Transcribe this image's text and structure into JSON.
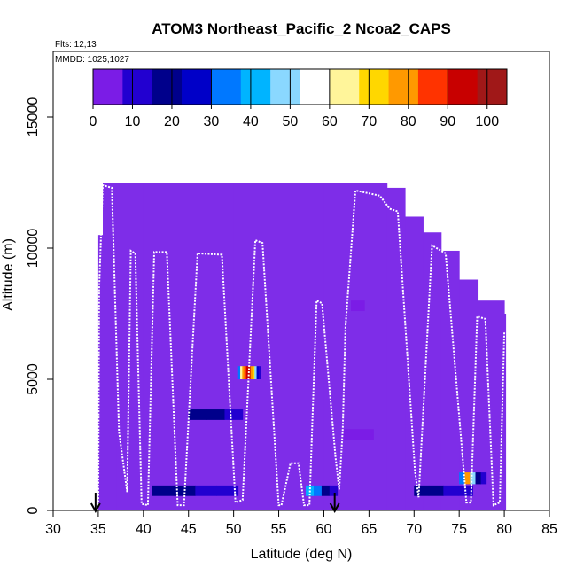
{
  "chart_data": {
    "type": "heatmap",
    "title": "ATOM3 Northeast_Pacific_2 Ncoa2_CAPS",
    "annotations": [
      "Flts: 12,13",
      "MMDD: 1025,1027"
    ],
    "xlabel": "Latitude (deg N)",
    "ylabel": "Altitude (m)",
    "xlim": [
      30,
      85
    ],
    "ylim": [
      0,
      17500
    ],
    "x_ticks": [
      "30",
      "35",
      "40",
      "45",
      "50",
      "55",
      "60",
      "65",
      "70",
      "75",
      "80",
      "85"
    ],
    "y_ticks": [
      "0",
      "5000",
      "10000",
      "15000"
    ],
    "colorbar": {
      "range": [
        0,
        105
      ],
      "ticks": [
        "0",
        "10",
        "20",
        "30",
        "40",
        "50",
        "60",
        "70",
        "80",
        "90",
        "100"
      ],
      "colors": [
        "#7b1ce6",
        "#2200d0",
        "#00008b",
        "#0000c8",
        "#0078ff",
        "#00b4ff",
        "#8ad8ff",
        "#ffffff",
        "#fff59a",
        "#ffd700",
        "#ff9900",
        "#ff3300",
        "#c80000",
        "#a01818"
      ]
    },
    "background_value_color": "#7e2de8",
    "sampled_region_columns": [
      {
        "lat": 35,
        "alt_max": 10500
      },
      {
        "lat": 35.5,
        "alt_max": 12500
      },
      {
        "lat": 37,
        "alt_max": 12500
      },
      {
        "lat": 40,
        "alt_max": 12500
      },
      {
        "lat": 50,
        "alt_max": 12500
      },
      {
        "lat": 60,
        "alt_max": 12500
      },
      {
        "lat": 67,
        "alt_max": 12300
      },
      {
        "lat": 69,
        "alt_max": 11200
      },
      {
        "lat": 71,
        "alt_max": 10600
      },
      {
        "lat": 73,
        "alt_max": 9900
      },
      {
        "lat": 75,
        "alt_max": 8800
      },
      {
        "lat": 77,
        "alt_max": 8000
      },
      {
        "lat": 80,
        "alt_max": 7500
      }
    ],
    "patches": [
      {
        "lat": [
          50.5,
          53.0
        ],
        "alt": [
          5000,
          5500
        ],
        "values": [
          30,
          60,
          75,
          85,
          95,
          90,
          80,
          70,
          50,
          25,
          10
        ]
      },
      {
        "lat": [
          45.0,
          51.0
        ],
        "alt": [
          3450,
          3850
        ],
        "values": [
          15,
          18,
          12
        ]
      },
      {
        "lat": [
          41.0,
          50.5
        ],
        "alt": [
          550,
          950
        ],
        "values": [
          18,
          15,
          12,
          10
        ]
      },
      {
        "lat": [
          58.0,
          61.5
        ],
        "alt": [
          550,
          950
        ],
        "values": [
          40,
          35,
          15,
          10
        ]
      },
      {
        "lat": [
          70.0,
          76.5
        ],
        "alt": [
          550,
          950
        ],
        "values": [
          18,
          15,
          12,
          10
        ]
      },
      {
        "lat": [
          75.0,
          78.0
        ],
        "alt": [
          1000,
          1450
        ],
        "values": [
          35,
          80,
          45,
          15,
          8
        ]
      },
      {
        "lat": [
          62.0,
          65.5
        ],
        "alt": [
          2700,
          3100
        ],
        "values": [
          3
        ]
      },
      {
        "lat": [
          63.0,
          64.5
        ],
        "alt": [
          7600,
          8000
        ],
        "values": [
          3
        ]
      }
    ],
    "flight_track": [
      {
        "x": 35.0,
        "y": 200
      },
      {
        "x": 35.1,
        "y": 8500
      },
      {
        "x": 35.5,
        "y": 12400
      },
      {
        "x": 36.5,
        "y": 12300
      },
      {
        "x": 37.3,
        "y": 3000
      },
      {
        "x": 38.2,
        "y": 700
      },
      {
        "x": 38.6,
        "y": 9900
      },
      {
        "x": 39.1,
        "y": 9800
      },
      {
        "x": 39.8,
        "y": 250
      },
      {
        "x": 40.5,
        "y": 200
      },
      {
        "x": 41.2,
        "y": 9850
      },
      {
        "x": 42.6,
        "y": 9850
      },
      {
        "x": 43.8,
        "y": 200
      },
      {
        "x": 44.5,
        "y": 200
      },
      {
        "x": 46.0,
        "y": 9800
      },
      {
        "x": 48.7,
        "y": 9750
      },
      {
        "x": 50.2,
        "y": 300
      },
      {
        "x": 51.0,
        "y": 400
      },
      {
        "x": 52.4,
        "y": 10300
      },
      {
        "x": 53.2,
        "y": 10200
      },
      {
        "x": 55.0,
        "y": 200
      },
      {
        "x": 55.3,
        "y": 200
      },
      {
        "x": 56.3,
        "y": 1800
      },
      {
        "x": 57.2,
        "y": 1800
      },
      {
        "x": 57.8,
        "y": 200
      },
      {
        "x": 58.4,
        "y": 200
      },
      {
        "x": 59.2,
        "y": 8000
      },
      {
        "x": 59.8,
        "y": 7900
      },
      {
        "x": 61.3,
        "y": 2000
      },
      {
        "x": 61.7,
        "y": 800
      },
      {
        "x": 62.1,
        "y": 3100
      },
      {
        "x": 62.4,
        "y": 7000
      },
      {
        "x": 63.5,
        "y": 12200
      },
      {
        "x": 66.2,
        "y": 12000
      },
      {
        "x": 67.3,
        "y": 11500
      },
      {
        "x": 68.2,
        "y": 11400
      },
      {
        "x": 70.1,
        "y": 1500
      },
      {
        "x": 70.5,
        "y": 500
      },
      {
        "x": 72.0,
        "y": 10100
      },
      {
        "x": 73.5,
        "y": 9800
      },
      {
        "x": 75.8,
        "y": 300
      },
      {
        "x": 76.3,
        "y": 300
      },
      {
        "x": 77.0,
        "y": 7400
      },
      {
        "x": 77.9,
        "y": 7300
      },
      {
        "x": 78.8,
        "y": 200
      },
      {
        "x": 79.5,
        "y": 300
      },
      {
        "x": 80.0,
        "y": 6800
      }
    ],
    "markers": [
      {
        "lat": 34.7,
        "label": "arrow"
      },
      {
        "lat": 61.2,
        "label": "arrow"
      }
    ]
  }
}
